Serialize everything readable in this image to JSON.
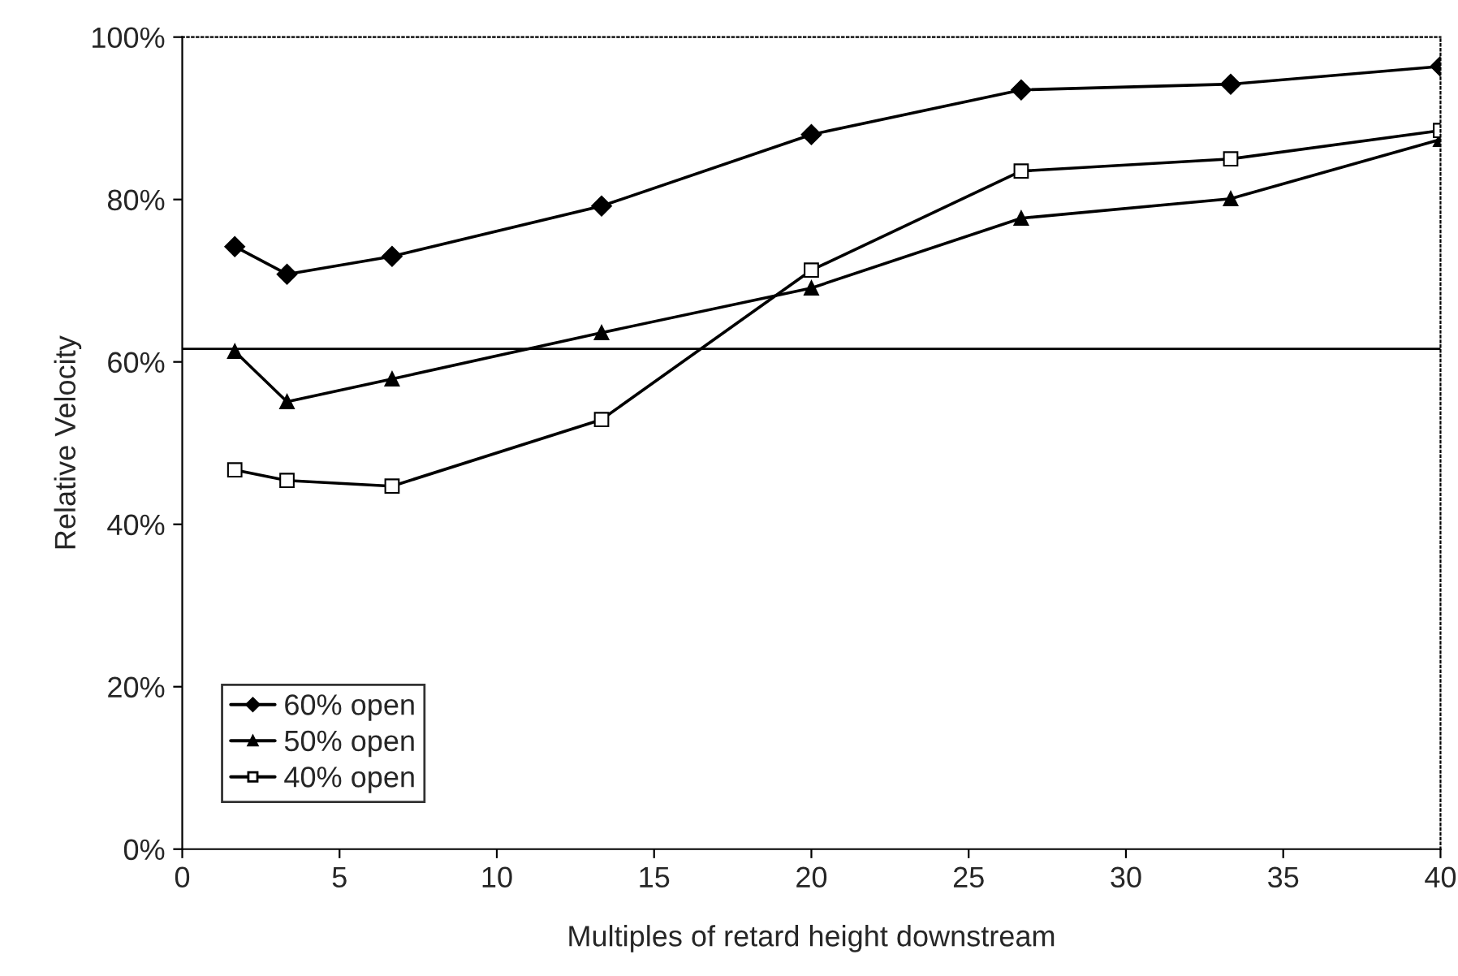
{
  "chart_data": {
    "type": "line",
    "xlabel": "Multiples of retard height downstream",
    "ylabel": "Relative Velocity",
    "x": [
      1.67,
      3.33,
      6.67,
      13.33,
      20,
      26.67,
      33.33,
      40
    ],
    "series": [
      {
        "name": "60% open",
        "color": "#000000",
        "marker": "diamond",
        "values": [
          74.2,
          70.8,
          73,
          79.2,
          88,
          93.5,
          94.2,
          96.4
        ]
      },
      {
        "name": "50% open",
        "color": "#000000",
        "marker": "triangle",
        "values": [
          61.3,
          55.1,
          57.9,
          63.6,
          69.1,
          77.7,
          80.1,
          87.4
        ]
      },
      {
        "name": "40% open",
        "color": "#000000",
        "marker": "square",
        "values": [
          46.7,
          45.4,
          44.7,
          52.9,
          71.3,
          83.5,
          85,
          88.5
        ]
      }
    ],
    "xlim": [
      0,
      40
    ],
    "xticks": [
      0,
      5,
      10,
      15,
      20,
      25,
      30,
      35,
      40
    ],
    "ylim": [
      0,
      100
    ],
    "yticks": [
      {
        "value": 0,
        "label": "0%"
      },
      {
        "value": 20,
        "label": "20%"
      },
      {
        "value": 40,
        "label": "40%"
      },
      {
        "value": 60,
        "label": "60%"
      },
      {
        "value": 80,
        "label": "80%"
      },
      {
        "value": 100,
        "label": "100%"
      }
    ],
    "ref_lines": [
      {
        "axis": "y",
        "value": 61.6,
        "color": "#000000"
      }
    ],
    "legend": "bottom left",
    "grid": false,
    "line_style": "solid"
  }
}
